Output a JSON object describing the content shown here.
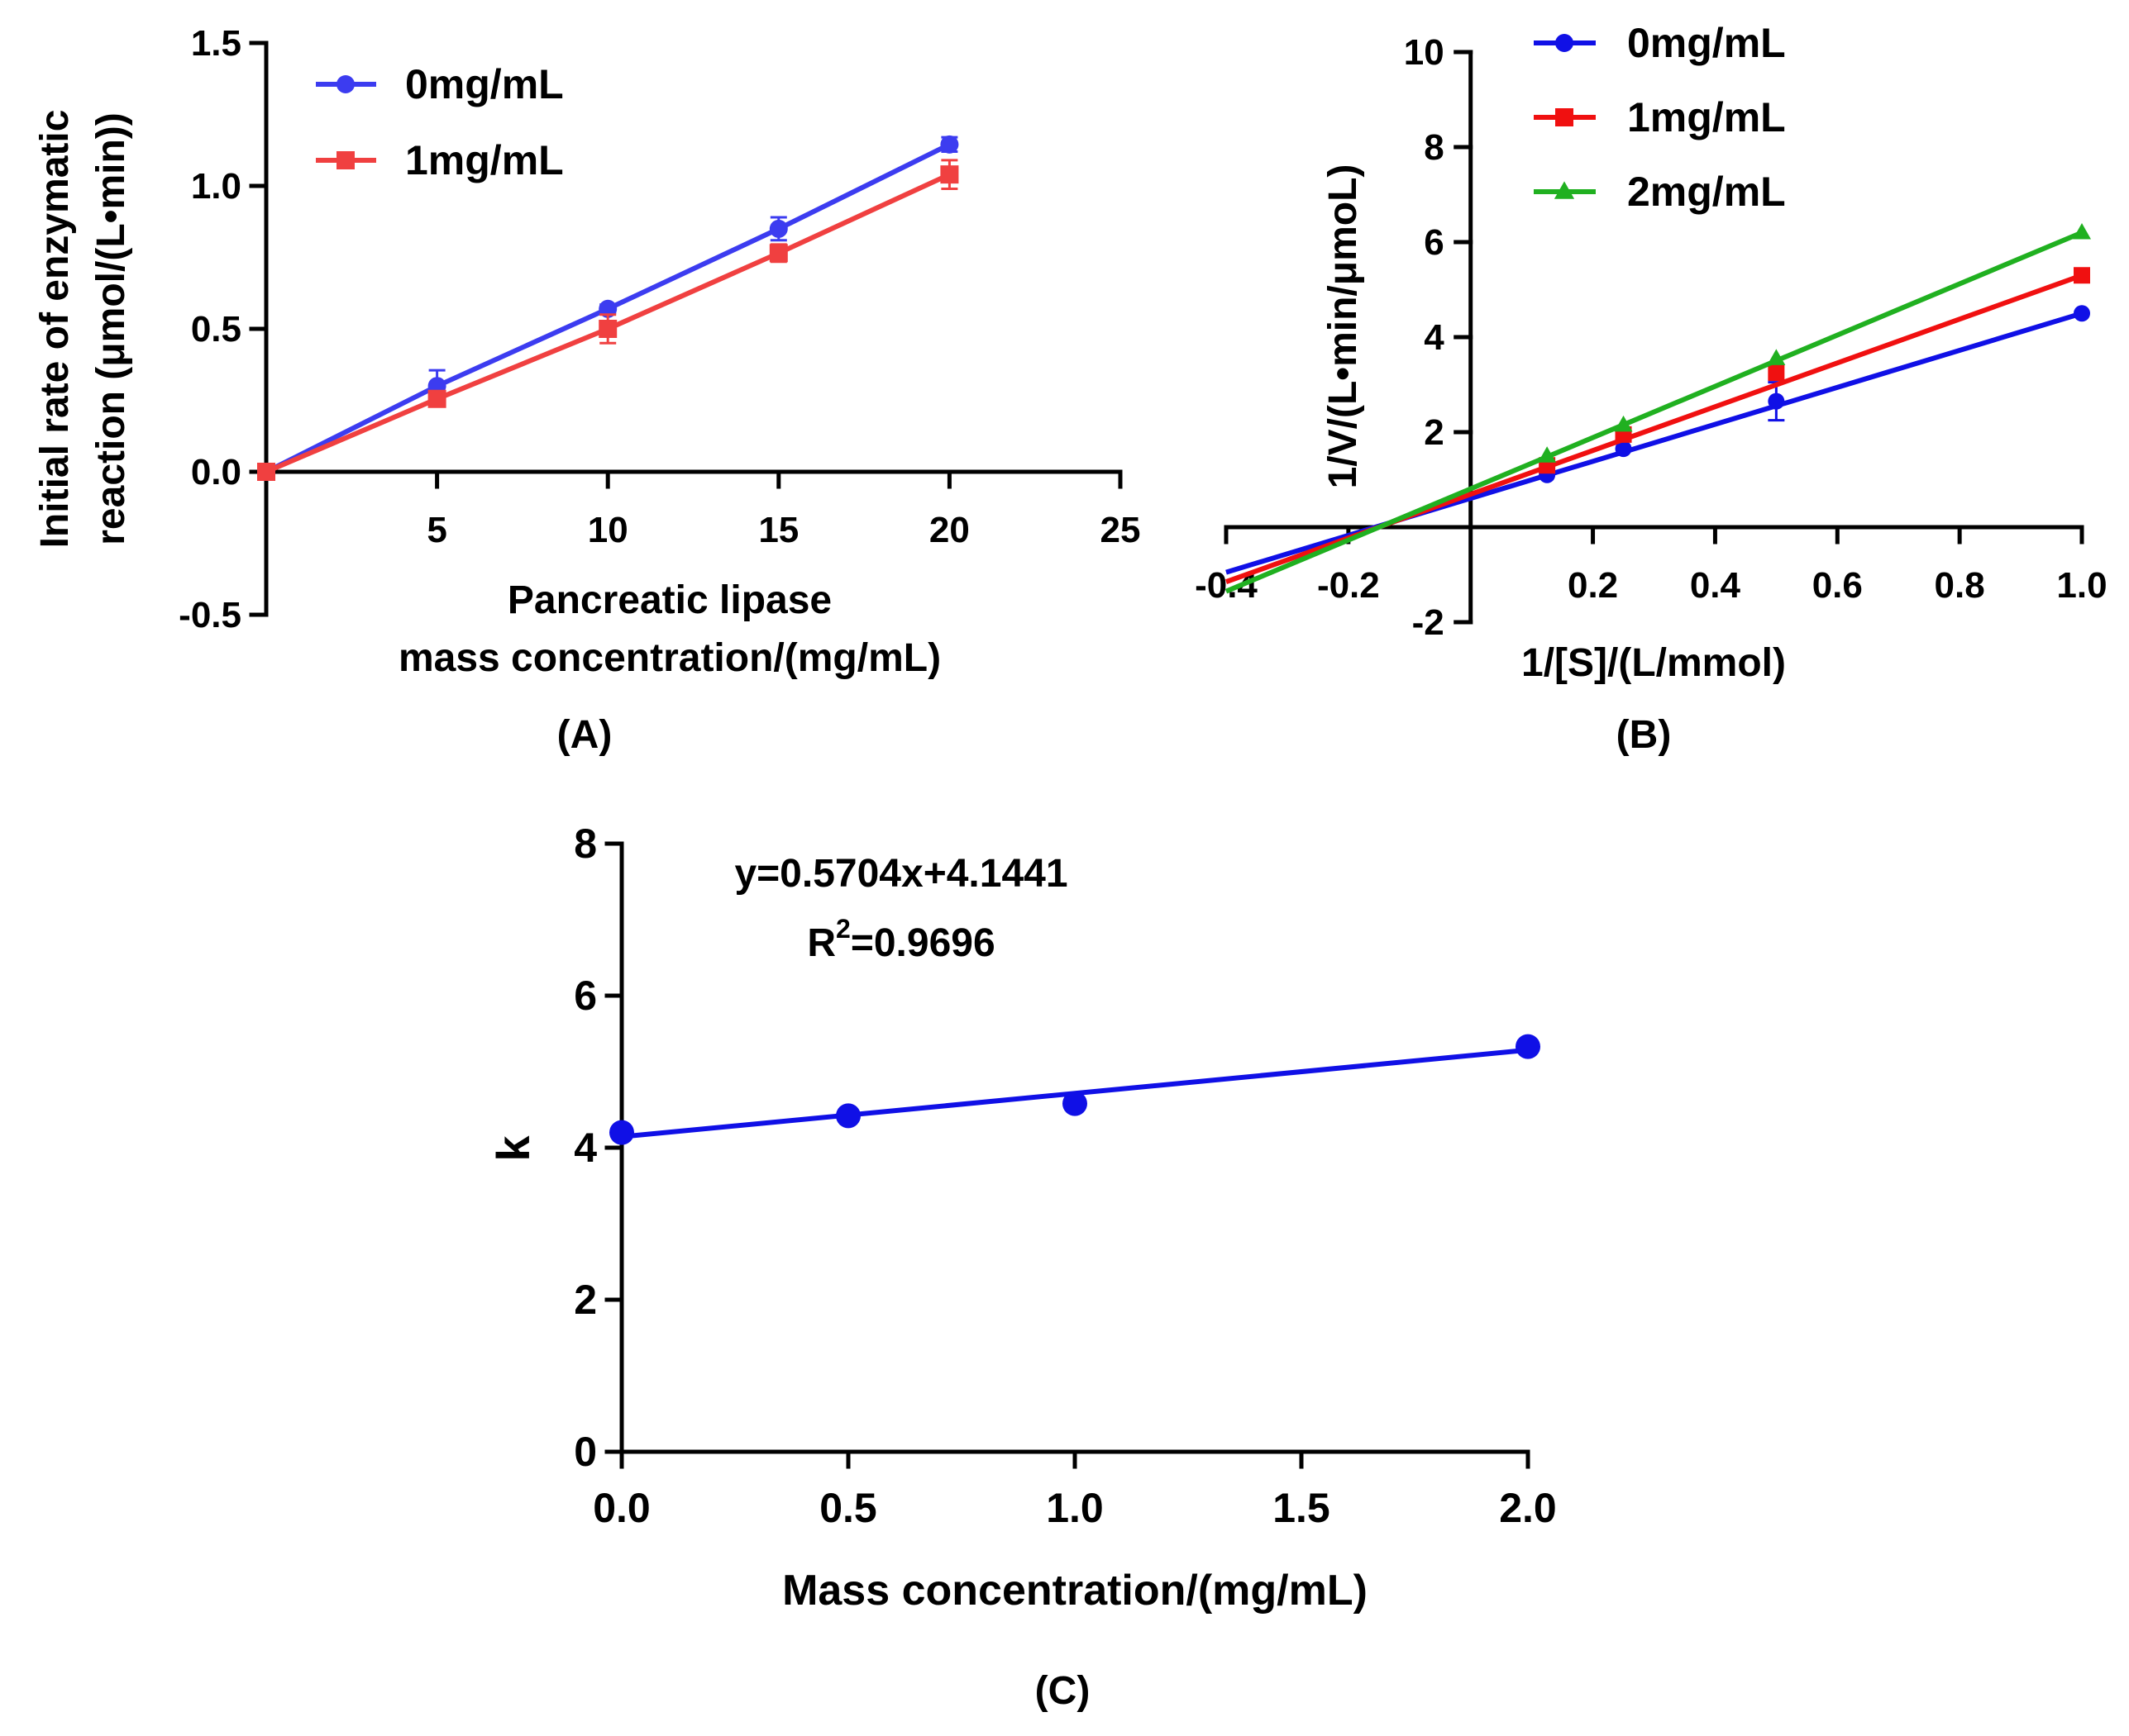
{
  "chart_data": [
    {
      "id": "A",
      "type": "line",
      "panel_label": "(A)",
      "xlabel_lines": [
        "Pancreatic lipase",
        "mass concentration/(mg/mL)"
      ],
      "ylabel_lines": [
        "Initial rate of enzymatic",
        "reaction (μmol/(L•min))"
      ],
      "xlim": [
        0,
        25
      ],
      "ylim": [
        -0.5,
        1.5
      ],
      "xticks": [
        5,
        10,
        15,
        20,
        25
      ],
      "yticks": [
        -0.5,
        0.0,
        0.5,
        1.0,
        1.5
      ],
      "ytick_labels": [
        "-0.5",
        "0.0",
        "0.5",
        "1.0",
        "1.5"
      ],
      "legend": "top-left",
      "series": [
        {
          "name": "0mg/mL",
          "color": "#3c3cf0",
          "marker": "circle",
          "x": [
            0,
            5,
            10,
            15,
            20
          ],
          "y": [
            0.0,
            0.3,
            0.57,
            0.85,
            1.145
          ],
          "err": [
            0.0,
            0.055,
            0.015,
            0.04,
            0.025
          ]
        },
        {
          "name": "1mg/mL",
          "color": "#f04040",
          "marker": "square",
          "x": [
            0,
            5,
            10,
            15,
            20
          ],
          "y": [
            0.0,
            0.255,
            0.5,
            0.765,
            1.04
          ],
          "err": [
            0.0,
            0.025,
            0.05,
            0.03,
            0.05
          ]
        }
      ]
    },
    {
      "id": "B",
      "type": "line",
      "panel_label": "(B)",
      "xlabel_lines": [
        "1/[S]/(L/mmol)"
      ],
      "ylabel_lines": [
        "1/V/(L•min/μmoL)"
      ],
      "xlim": [
        -0.4,
        1.0
      ],
      "ylim": [
        -2,
        10
      ],
      "xticks": [
        -0.4,
        -0.2,
        0.2,
        0.4,
        0.6,
        0.8,
        1.0
      ],
      "xtick_labels": [
        "-0.4",
        "-0.2",
        "0.2",
        "0.4",
        "0.6",
        "0.8",
        "1.0"
      ],
      "yticks": [
        -2,
        2,
        4,
        6,
        8,
        10
      ],
      "legend": "top-right",
      "series": [
        {
          "name": "0mg/mL",
          "color": "#1010e6",
          "marker": "circle",
          "x": [
            0.125,
            0.25,
            0.5,
            1.0
          ],
          "y": [
            1.1,
            1.65,
            2.65,
            4.5
          ],
          "err": [
            0,
            0,
            0.4,
            0
          ],
          "line": [
            [
              -0.4,
              -0.95
            ],
            [
              1.0,
              4.5
            ]
          ]
        },
        {
          "name": "1mg/mL",
          "color": "#f01010",
          "marker": "square",
          "x": [
            0.125,
            0.25,
            0.5,
            1.0
          ],
          "y": [
            1.3,
            1.95,
            3.25,
            5.3
          ],
          "err": [
            0,
            0,
            0,
            0
          ],
          "line": [
            [
              -0.4,
              -1.15
            ],
            [
              1.0,
              5.3
            ]
          ]
        },
        {
          "name": "2mg/mL",
          "color": "#20b020",
          "marker": "triangle",
          "x": [
            0.125,
            0.25,
            0.5,
            1.0
          ],
          "y": [
            1.5,
            2.15,
            3.55,
            6.2
          ],
          "err": [
            0,
            0,
            0,
            0
          ],
          "line": [
            [
              -0.4,
              -1.35
            ],
            [
              1.0,
              6.2
            ]
          ]
        }
      ]
    },
    {
      "id": "C",
      "type": "scatter",
      "panel_label": "(C)",
      "xlabel_lines": [
        "Mass concentration/(mg/mL)"
      ],
      "ylabel_lines": [
        "k"
      ],
      "xlim": [
        0,
        2
      ],
      "ylim": [
        0,
        8
      ],
      "xticks": [
        0.0,
        0.5,
        1.0,
        1.5,
        2.0
      ],
      "xtick_labels": [
        "0.0",
        "0.5",
        "1.0",
        "1.5",
        "2.0"
      ],
      "yticks": [
        0,
        2,
        4,
        6,
        8
      ],
      "annotation": {
        "equation": "y=0.5704x+4.1441",
        "r2_prefix": "R",
        "r2_sup": "2",
        "r2_value": "=0.9696"
      },
      "series": [
        {
          "name": "k",
          "color": "#1010e6",
          "marker": "circle",
          "x": [
            0,
            0.5,
            1.0,
            2.0
          ],
          "y": [
            4.2,
            4.42,
            4.58,
            5.33
          ],
          "fit": {
            "slope": 0.5704,
            "intercept": 4.1441
          }
        }
      ]
    }
  ]
}
